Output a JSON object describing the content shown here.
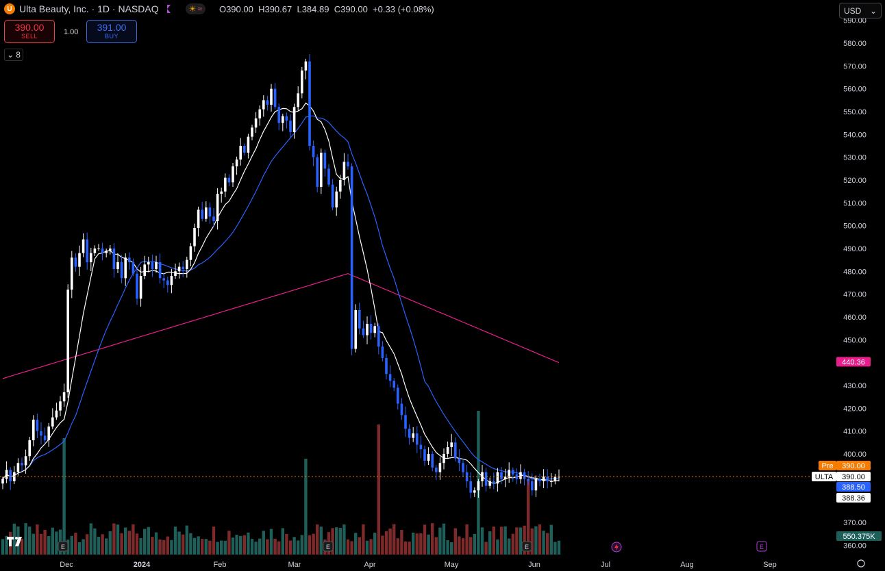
{
  "header": {
    "logo_letter": "U",
    "title": "Ulta Beauty, Inc. · 1D · NASDAQ",
    "ohlc": {
      "o_label": "O",
      "o": "390.00",
      "h_label": "H",
      "h": "390.67",
      "l_label": "L",
      "l": "384.89",
      "c_label": "C",
      "c": "390.00",
      "change": "+0.33 (+0.08%)"
    }
  },
  "trade": {
    "sell_price": "390.00",
    "sell_label": "SELL",
    "qty": "1.00",
    "buy_price": "391.00",
    "buy_label": "BUY"
  },
  "indicators_count": "8",
  "currency": "USD",
  "colors": {
    "up": "#ffffff",
    "down": "#2962ff",
    "vol_up": "#1f5f5a",
    "vol_down": "#7e2a2a",
    "ma_fast": "#ffffff",
    "ma_mid": "#2962ff",
    "ma_slow": "#e91e8c",
    "bg": "#000000",
    "pre": "#f57c00",
    "last": "#ffffff"
  },
  "chart_data": {
    "type": "candlestick",
    "y_ticks": [
      "360.00",
      "370.00",
      "380.00",
      "390.00",
      "400.00",
      "410.00",
      "420.00",
      "430.00",
      "440.00",
      "450.00",
      "460.00",
      "470.00",
      "480.00",
      "490.00",
      "500.00",
      "510.00",
      "520.00",
      "530.00",
      "540.00",
      "550.00",
      "560.00",
      "570.00",
      "580.00",
      "590.00"
    ],
    "x_labels": [
      "Dec",
      "2024",
      "Feb",
      "Mar",
      "Apr",
      "May",
      "Jun",
      "Jul",
      "Aug",
      "Sep"
    ],
    "closes": [
      389,
      393,
      388,
      392,
      396,
      395,
      399,
      406,
      415,
      410,
      408,
      406,
      412,
      416,
      419,
      423,
      427,
      472,
      486,
      482,
      488,
      494,
      484,
      488,
      490,
      490,
      488,
      489,
      490,
      481,
      484,
      477,
      486,
      484,
      479,
      468,
      478,
      483,
      484,
      481,
      484,
      477,
      476,
      474,
      478,
      480,
      482,
      481,
      485,
      491,
      499,
      507,
      503,
      508,
      504,
      502,
      514,
      515,
      521,
      519,
      526,
      529,
      535,
      532,
      539,
      543,
      547,
      551,
      555,
      553,
      560,
      552,
      545,
      548,
      546,
      541,
      552,
      558,
      568,
      572,
      535,
      530,
      517,
      532,
      525,
      518,
      508,
      515,
      520,
      528,
      526,
      446,
      463,
      455,
      452,
      457,
      453,
      456,
      447,
      442,
      435,
      432,
      429,
      422,
      417,
      411,
      407,
      409,
      404,
      402,
      397,
      400,
      394,
      392,
      396,
      400,
      403,
      405,
      398,
      396,
      392,
      388,
      383,
      384,
      388,
      392,
      386,
      388,
      387,
      392,
      389,
      390,
      393,
      391,
      389,
      392,
      389,
      388,
      384,
      389,
      388,
      390,
      388,
      388,
      390,
      390
    ],
    "ma_fast_label": "",
    "overlays": {
      "pre_label": "Pre",
      "pre_price": "390.00",
      "last_label": "ULTA",
      "last_price": "390.00",
      "ma_mid_value": "388.50",
      "ma_fast_value": "388.36",
      "ma_slow_value": "440.36",
      "volume_value": "550.375K"
    },
    "earnings_marker": "E"
  }
}
